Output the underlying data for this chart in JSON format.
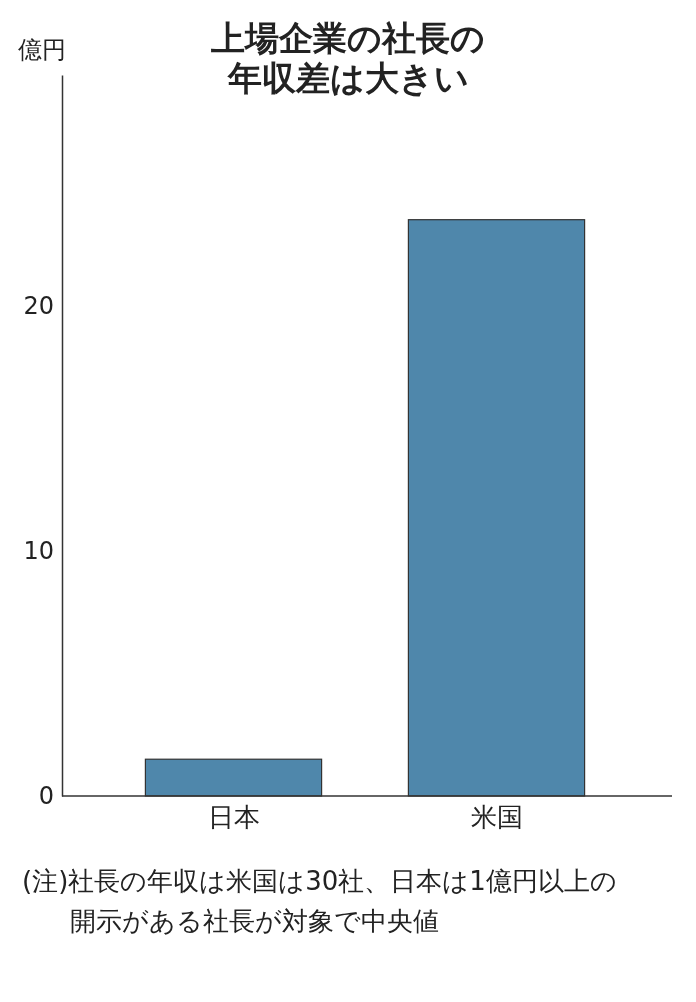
{
  "chart_data": {
    "type": "bar",
    "title": "上場企業の社長の年収差は大きい",
    "ylabel": "億円",
    "categories": [
      "日本",
      "米国"
    ],
    "values": [
      1.5,
      23.5
    ],
    "color": "#4f87ab",
    "ylim": [
      0,
      29.4
    ],
    "yticks": [
      0,
      10,
      20
    ],
    "annotations": [
      "(注)社長の年収は米国は30社、日本は1億円以上の開示がある社長が対象で中央値"
    ]
  }
}
